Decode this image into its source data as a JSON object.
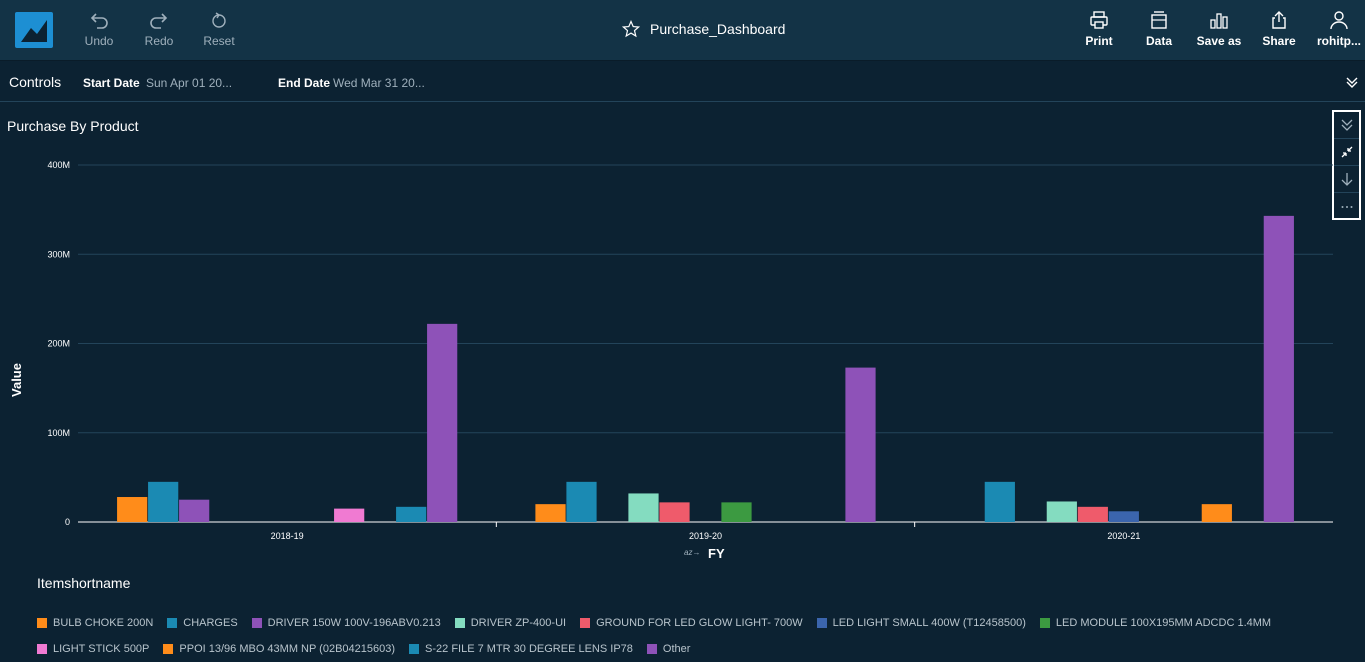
{
  "toolbar": {
    "undo_label": "Undo",
    "redo_label": "Redo",
    "reset_label": "Reset",
    "print_label": "Print",
    "data_label": "Data",
    "save_as_label": "Save as",
    "share_label": "Share",
    "user_label": "rohitp..."
  },
  "dashboard": {
    "title": "Purchase_Dashboard"
  },
  "controls": {
    "label": "Controls",
    "start_key": "Start Date",
    "start_value": "Sun Apr 01 20...",
    "end_key": "End Date",
    "end_value": "Wed Mar 31 20..."
  },
  "visual": {
    "title": "Purchase By Product"
  },
  "legend": {
    "title": "Itemshortname",
    "rows": [
      [
        {
          "label": "BULB CHOKE 200N",
          "color": "#ff8c1a"
        },
        {
          "label": "CHARGES",
          "color": "#1b8ab3"
        },
        {
          "label": "DRIVER 150W 100V-196ABV0.213",
          "color": "#8e52b8"
        },
        {
          "label": "DRIVER ZP-400-UI",
          "color": "#84dcc0"
        },
        {
          "label": "GROUND FOR LED GLOW LIGHT- 700W",
          "color": "#ef5b6b"
        },
        {
          "label": "LED LIGHT SMALL 400W (T12458500)",
          "color": "#3b65ad"
        },
        {
          "label": "LED MODULE 100X195MM ADCDC 1.4MM",
          "color": "#3c9a41"
        }
      ],
      [
        {
          "label": "LIGHT STICK 500P",
          "color": "#f07ad2"
        },
        {
          "label": "PPOI 13/96 MBO 43MM NP (02B04215603)",
          "color": "#ff8c1a"
        },
        {
          "label": "S-22 FILE 7 MTR 30 DEGREE LENS IP78",
          "color": "#1b8ab3"
        },
        {
          "label": "Other",
          "color": "#8e52b8"
        }
      ]
    ]
  },
  "chart_data": {
    "type": "bar",
    "ylabel": "Value",
    "xlabel": "FY",
    "ylim": [
      0,
      400
    ],
    "yunit": "M",
    "yticks": [
      "0",
      "100M",
      "200M",
      "300M",
      "400M"
    ],
    "categories": [
      "2018-19",
      "2019-20",
      "2020-21"
    ],
    "series": [
      {
        "name": "BULB CHOKE 200N",
        "color": "#ff8c1a",
        "values": [
          28,
          20,
          null
        ]
      },
      {
        "name": "CHARGES",
        "color": "#1b8ab3",
        "values": [
          45,
          45,
          45
        ]
      },
      {
        "name": "DRIVER 150W 100V-196ABV0.213",
        "color": "#8e52b8",
        "values": [
          25,
          null,
          null
        ]
      },
      {
        "name": "DRIVER ZP-400-UI",
        "color": "#84dcc0",
        "values": [
          null,
          32,
          23
        ]
      },
      {
        "name": "GROUND FOR LED GLOW LIGHT- 700W",
        "color": "#ef5b6b",
        "values": [
          null,
          22,
          17
        ]
      },
      {
        "name": "LED LIGHT SMALL 400W (T12458500)",
        "color": "#3b65ad",
        "values": [
          null,
          null,
          12
        ]
      },
      {
        "name": "LED MODULE 100X195MM ADCDC 1.4MM",
        "color": "#3c9a41",
        "values": [
          null,
          22,
          null
        ]
      },
      {
        "name": "LIGHT STICK 500P",
        "color": "#f07ad2",
        "values": [
          15,
          null,
          null
        ]
      },
      {
        "name": "PPOI 13/96 MBO 43MM NP (02B04215603)",
        "color": "#ff8c1a",
        "values": [
          null,
          null,
          20
        ]
      },
      {
        "name": "S-22 FILE 7 MTR 30 DEGREE LENS IP78",
        "color": "#1b8ab3",
        "values": [
          17,
          null,
          null
        ]
      },
      {
        "name": "Other",
        "color": "#8e52b8",
        "values": [
          222,
          173,
          343
        ]
      }
    ]
  }
}
